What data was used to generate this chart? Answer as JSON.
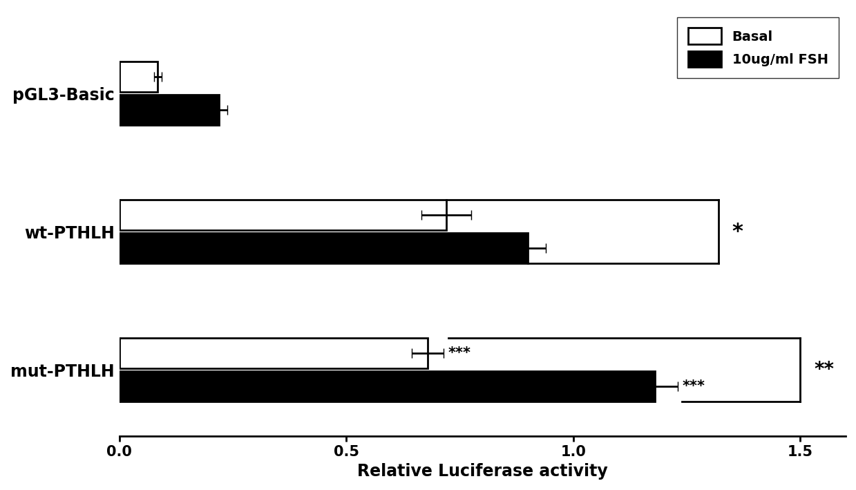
{
  "categories": [
    "pGL3-Basic",
    "wt-PTHLH",
    "mut-PTHLH"
  ],
  "basal_values": [
    0.085,
    0.72,
    0.68
  ],
  "fsh_values": [
    0.22,
    0.9,
    1.18
  ],
  "basal_errors": [
    0.008,
    0.055,
    0.035
  ],
  "fsh_errors": [
    0.018,
    0.04,
    0.05
  ],
  "bar_height": 0.55,
  "bar_gap": 0.05,
  "xlim": [
    0,
    1.6
  ],
  "xticks": [
    0.0,
    0.5,
    1.0,
    1.5
  ],
  "xlabel": "Relative Luciferase activity",
  "legend_labels": [
    "Basal",
    "10ug/ml FSH"
  ],
  "basal_color": "#ffffff",
  "fsh_color": "#000000",
  "edge_color": "#000000",
  "background_color": "#ffffff",
  "xlabel_fontsize": 17,
  "tick_fontsize": 15,
  "ylabel_fontsize": 17,
  "legend_fontsize": 14
}
